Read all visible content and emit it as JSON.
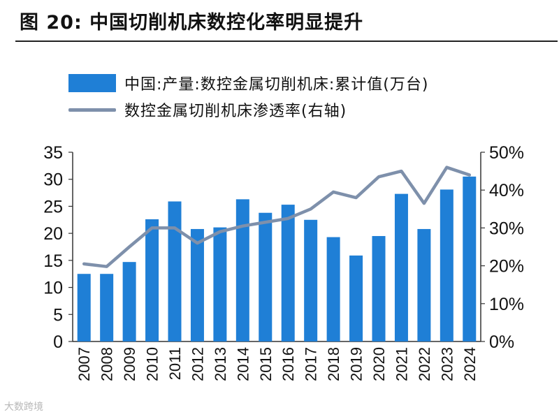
{
  "figure_title": "图 20:  中国切削机床数控化率明显提升",
  "watermark": "大数跨境",
  "chart_data": {
    "type": "bar",
    "title": "图 20:  中国切削机床数控化率明显提升",
    "categories": [
      "2007",
      "2008",
      "2009",
      "2010",
      "2011",
      "2012",
      "2013",
      "2014",
      "2015",
      "2016",
      "2017",
      "2018",
      "2019",
      "2020",
      "2021",
      "2022",
      "2023",
      "2024"
    ],
    "series": [
      {
        "name": "中国:产量:数控金属切削机床:累计值(万台)",
        "type": "bar",
        "axis": "left",
        "color": "#1f7fd6",
        "values": [
          12.5,
          12.5,
          14.7,
          22.6,
          25.9,
          20.8,
          21.1,
          26.3,
          23.8,
          25.3,
          22.5,
          19.3,
          15.9,
          19.5,
          27.3,
          20.8,
          28.1,
          30.5
        ]
      },
      {
        "name": "数控金属切削机床渗透率(右轴)",
        "type": "line",
        "axis": "right",
        "color": "#7e90ab",
        "values": [
          20.5,
          19.8,
          25.0,
          30.0,
          30.0,
          26.0,
          29.0,
          30.5,
          31.5,
          32.5,
          35.0,
          39.5,
          38.0,
          43.5,
          45.0,
          36.5,
          46.0,
          44.0
        ]
      }
    ],
    "y_left": {
      "ylim": [
        0,
        35
      ],
      "ticks": [
        "0",
        "5",
        "10",
        "15",
        "20",
        "25",
        "30",
        "35"
      ]
    },
    "y_right": {
      "ylim": [
        0,
        50
      ],
      "ticks": [
        "0%",
        "10%",
        "20%",
        "30%",
        "40%",
        "50%"
      ]
    },
    "xlabel": "",
    "ylabel": "",
    "grid": false,
    "legend_position": "top-left"
  }
}
